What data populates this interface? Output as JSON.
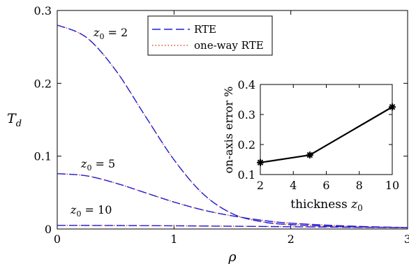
{
  "chart_data": [
    {
      "type": "line",
      "xlabel": "ρ",
      "ylabel": "T",
      "ylabel_sub": "d",
      "xlim": [
        0,
        3
      ],
      "ylim": [
        0,
        0.3
      ],
      "x_ticks": [
        "0",
        "1",
        "2",
        "3"
      ],
      "y_ticks": [
        "0",
        "0.1",
        "0.2",
        "0.3"
      ],
      "grid": false,
      "legend": {
        "placement": "top-center",
        "entries": [
          {
            "label": "RTE",
            "color": "#1f1fd6",
            "style": "dashed"
          },
          {
            "label": "one-way RTE",
            "color": "#e0452a",
            "style": "dotted"
          }
        ]
      },
      "annotations": [
        {
          "text": "z",
          "sub": "0",
          "value": " = 2"
        },
        {
          "text": "z",
          "sub": "0",
          "value": " = 5"
        },
        {
          "text": "z",
          "sub": "0",
          "value": " = 10"
        }
      ],
      "series": [
        {
          "z0": 2,
          "x": [
            0,
            0.25,
            0.5,
            0.75,
            1.0,
            1.25,
            1.5,
            1.75,
            2.0,
            2.5,
            3.0
          ],
          "y": [
            0.28,
            0.263,
            0.218,
            0.156,
            0.095,
            0.048,
            0.021,
            0.01,
            0.006,
            0.003,
            0.002
          ]
        },
        {
          "z0": 5,
          "x": [
            0,
            0.25,
            0.5,
            0.75,
            1.0,
            1.25,
            1.5,
            1.75,
            2.0,
            2.5,
            3.0
          ],
          "y": [
            0.076,
            0.073,
            0.063,
            0.05,
            0.037,
            0.026,
            0.018,
            0.012,
            0.008,
            0.004,
            0.002
          ]
        },
        {
          "z0": 10,
          "x": [
            0,
            0.5,
            1.0,
            1.5,
            2.0,
            2.5,
            3.0
          ],
          "y": [
            0.005,
            0.0048,
            0.0044,
            0.0038,
            0.0031,
            0.0024,
            0.0018
          ]
        }
      ]
    },
    {
      "type": "line",
      "xlabel": "thickness",
      "xlabel_var": "z",
      "xlabel_sub": "0",
      "ylabel": "on-axis error %",
      "xlim": [
        2,
        10
      ],
      "ylim": [
        0.1,
        0.4
      ],
      "x_ticks": [
        "2",
        "4",
        "6",
        "8",
        "10"
      ],
      "y_ticks": [
        "0.1",
        "0.2",
        "0.3",
        "0.4"
      ],
      "series": [
        {
          "x": [
            2,
            5,
            10
          ],
          "y": [
            0.14,
            0.165,
            0.325
          ],
          "color": "#000000",
          "marker": "asterisk"
        }
      ]
    }
  ]
}
